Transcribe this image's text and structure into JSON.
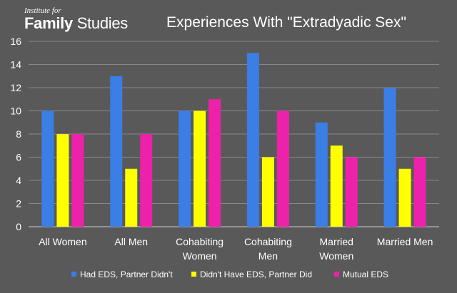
{
  "logo": {
    "line1": "Institute for",
    "word1": "Family",
    "word2": "Studies"
  },
  "chart_data": {
    "type": "bar",
    "title": "Experiences With \"Extradyadic Sex\"",
    "categories": [
      [
        "All Women"
      ],
      [
        "All Men"
      ],
      [
        "Cohabiting",
        "Women"
      ],
      [
        "Cohabiting",
        "Men"
      ],
      [
        "Married",
        "Women"
      ],
      [
        "Married Men"
      ]
    ],
    "series": [
      {
        "name": "Had EDS, Partner Didn't",
        "color": "#3a7ee6",
        "values": [
          10,
          13,
          10,
          15,
          9,
          12
        ]
      },
      {
        "name": "Didn't Have EDS, Partner Did",
        "color": "#ffff00",
        "values": [
          8,
          5,
          10,
          6,
          7,
          5
        ]
      },
      {
        "name": "Mutual EDS",
        "color": "#ee22aa",
        "values": [
          8,
          8,
          11,
          10,
          6,
          6
        ]
      }
    ],
    "ylim": [
      0,
      16
    ],
    "yticks": [
      0,
      2,
      4,
      6,
      8,
      10,
      12,
      14,
      16
    ],
    "grid": true,
    "legend_position": "bottom"
  }
}
